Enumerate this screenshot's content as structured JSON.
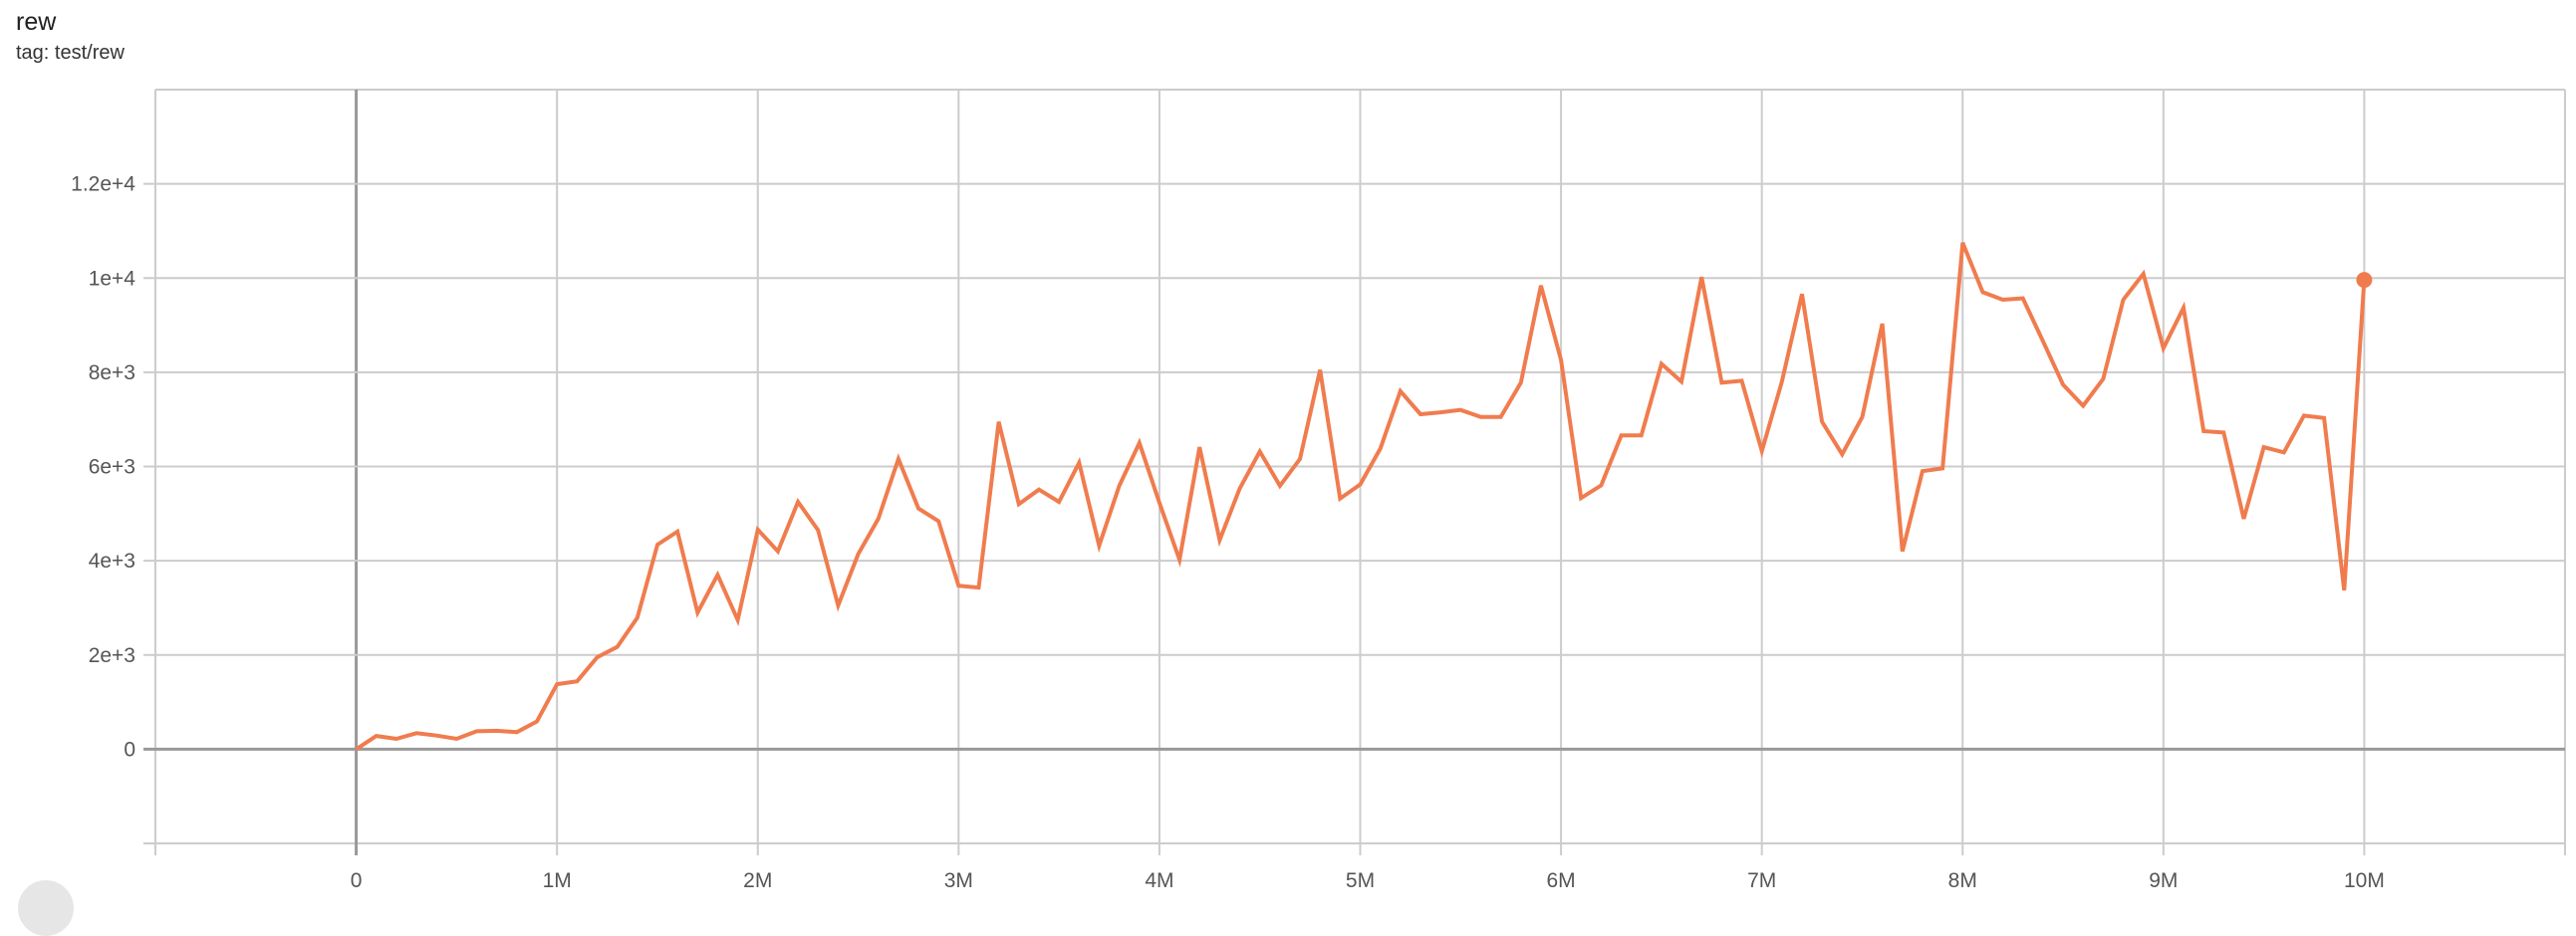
{
  "header": {
    "title": "rew",
    "subtitle": "tag: test/rew"
  },
  "chart_data": {
    "type": "line",
    "title": "rew",
    "subtitle": "tag: test/rew",
    "xlabel": "",
    "ylabel": "",
    "xlim": [
      -1000000,
      11000000
    ],
    "ylim": [
      -2000,
      14000
    ],
    "grid": true,
    "line_color": "#f07c4e",
    "x_ticks": [
      {
        "value": 0,
        "label": "0"
      },
      {
        "value": 1000000,
        "label": "1M"
      },
      {
        "value": 2000000,
        "label": "2M"
      },
      {
        "value": 3000000,
        "label": "3M"
      },
      {
        "value": 4000000,
        "label": "4M"
      },
      {
        "value": 5000000,
        "label": "5M"
      },
      {
        "value": 6000000,
        "label": "6M"
      },
      {
        "value": 7000000,
        "label": "7M"
      },
      {
        "value": 8000000,
        "label": "8M"
      },
      {
        "value": 9000000,
        "label": "9M"
      },
      {
        "value": 10000000,
        "label": "10M"
      }
    ],
    "y_ticks": [
      {
        "value": 0,
        "label": "0"
      },
      {
        "value": 2000,
        "label": "2e+3"
      },
      {
        "value": 4000,
        "label": "4e+3"
      },
      {
        "value": 6000,
        "label": "6e+3"
      },
      {
        "value": 8000,
        "label": "8e+3"
      },
      {
        "value": 10000,
        "label": "1e+4"
      },
      {
        "value": 12000,
        "label": "1.2e+4"
      }
    ],
    "series": [
      {
        "x_step": 100000,
        "x_start": 0,
        "values": [
          0,
          280,
          220,
          340,
          290,
          220,
          380,
          390,
          360,
          590,
          1380,
          1440,
          1950,
          2170,
          2790,
          4340,
          4620,
          2900,
          3700,
          2740,
          4660,
          4200,
          5250,
          4650,
          3050,
          4140,
          4890,
          6160,
          5110,
          4840,
          3470,
          3430,
          6950,
          5200,
          5510,
          5250,
          6080,
          4320,
          5590,
          6500,
          5230,
          4020,
          6410,
          4440,
          5530,
          6320,
          5590,
          6160,
          8050,
          5320,
          5620,
          6380,
          7600,
          7110,
          7150,
          7200,
          7050,
          7050,
          7780,
          9840,
          8260,
          5330,
          5600,
          6660,
          6660,
          8180,
          7800,
          10020,
          7780,
          7820,
          6330,
          7800,
          9660,
          6950,
          6260,
          7050,
          9030,
          4200,
          5900,
          5960,
          10750,
          9700,
          9540,
          9570,
          8660,
          7740,
          7290,
          7860,
          9540,
          10090,
          8510,
          9370,
          6750,
          6720,
          4890,
          6410,
          6300,
          7080,
          7030,
          3370,
          9960
        ]
      }
    ]
  }
}
